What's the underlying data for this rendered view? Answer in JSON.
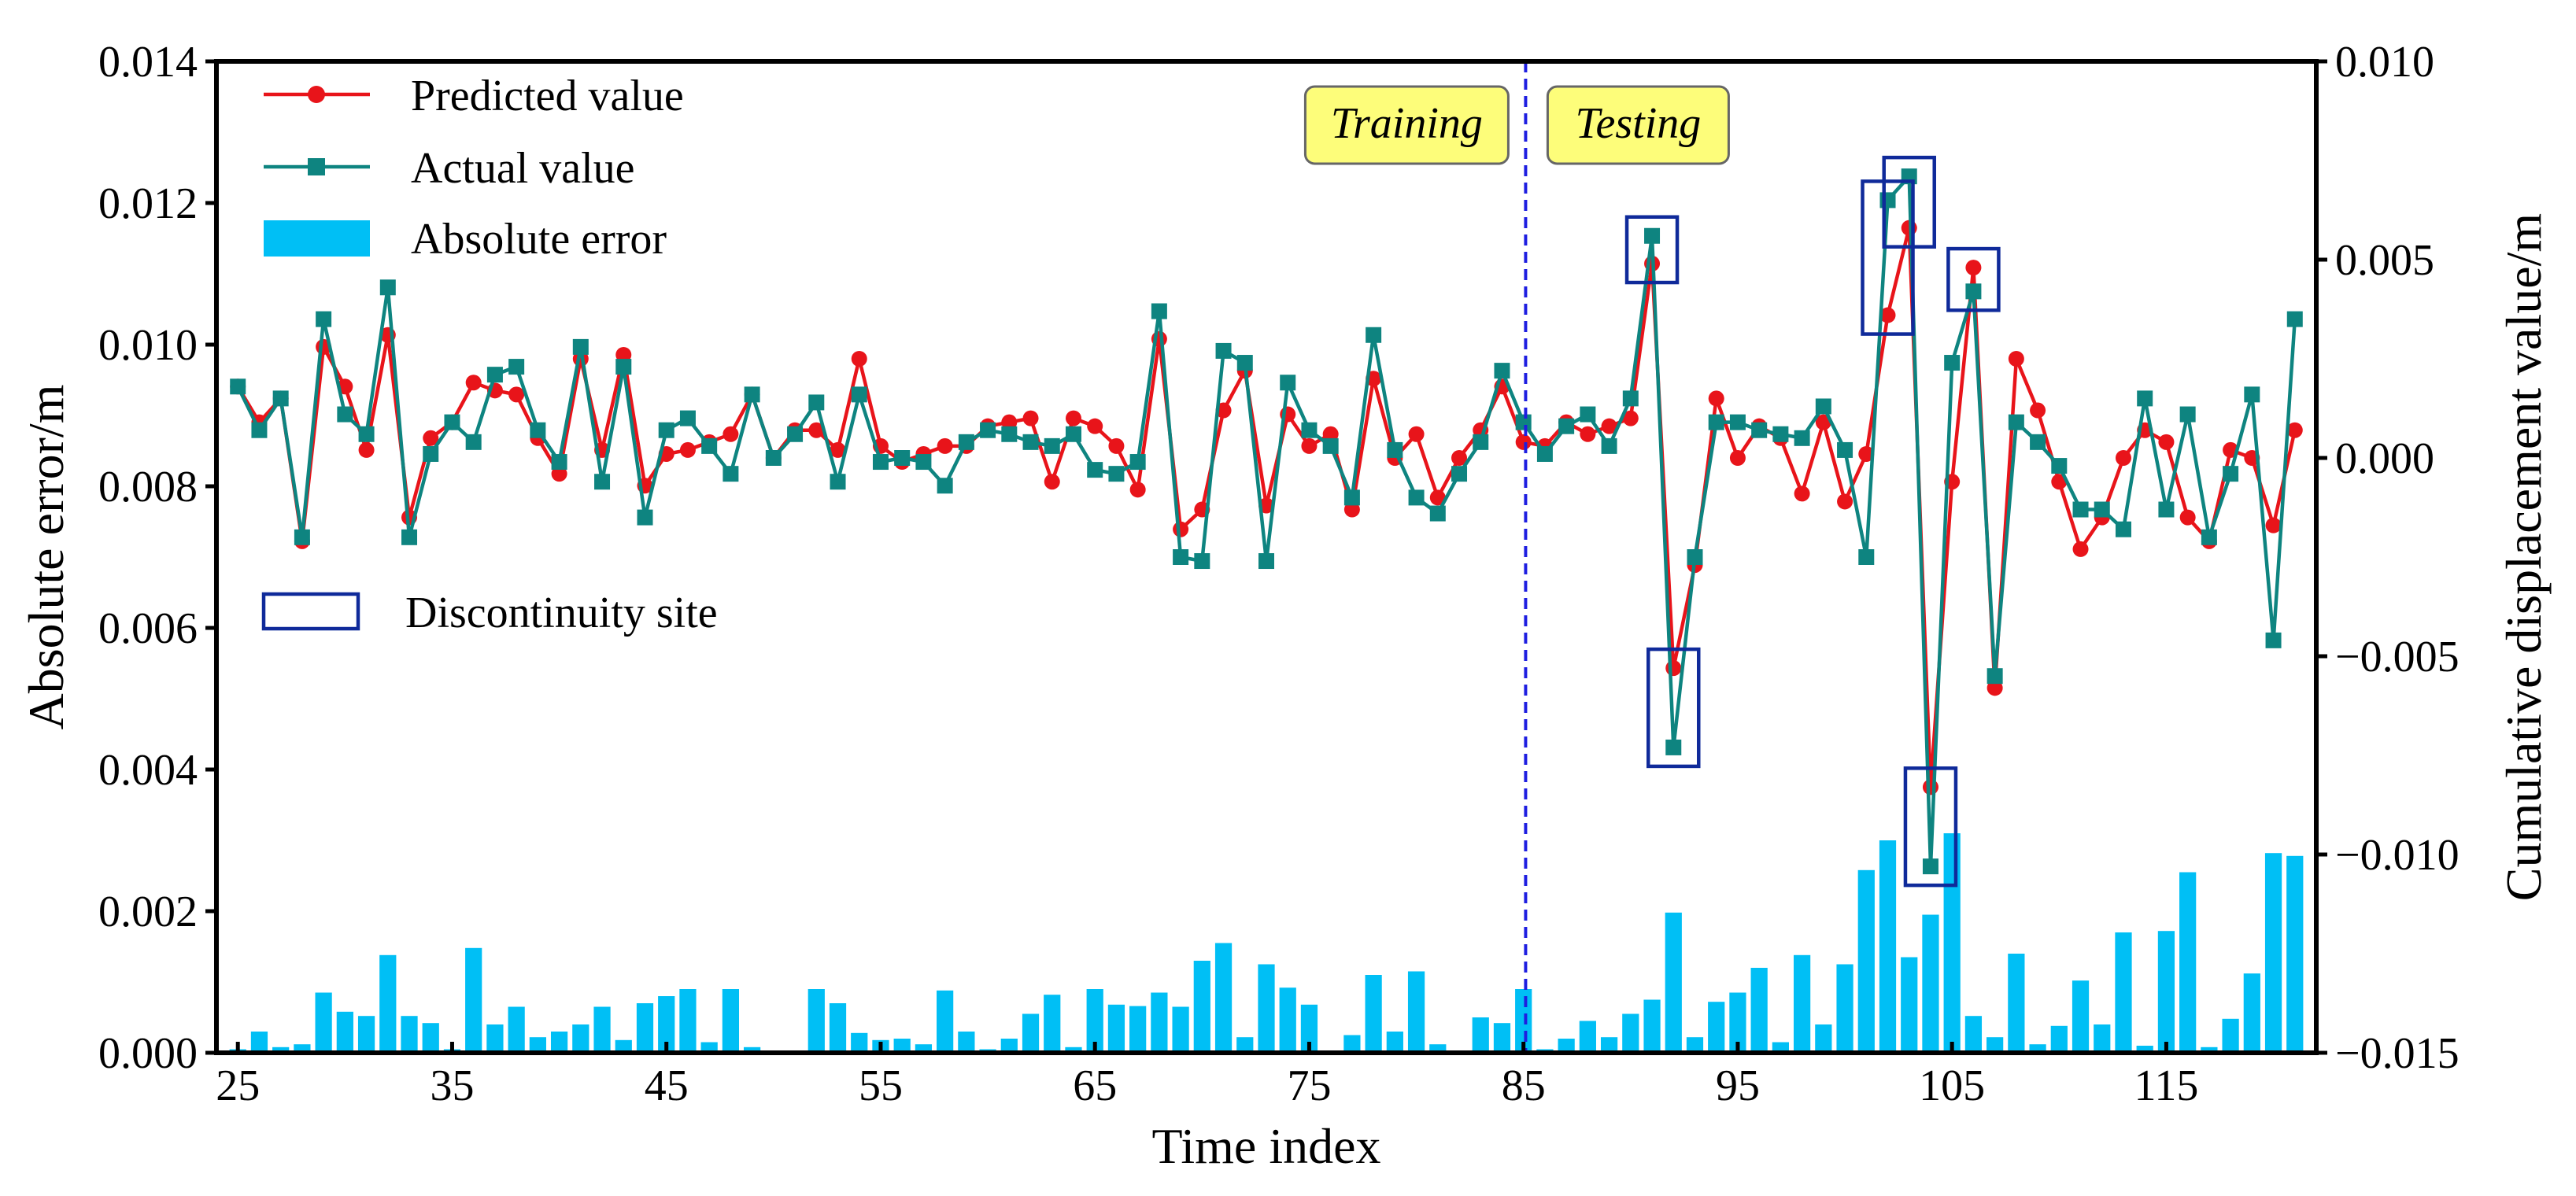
{
  "chart_data": {
    "type": "line+bar",
    "x_range": [
      25,
      121
    ],
    "xlabel": "Time index",
    "ylabel_left": "Absolute error/m",
    "ylabel_right": "Cumulative displacement value/m",
    "ylim_left": [
      0,
      0.014
    ],
    "ylim_right": [
      -0.015,
      0.01
    ],
    "x_ticks": [
      25,
      35,
      45,
      55,
      65,
      75,
      85,
      95,
      105,
      115
    ],
    "x_tick_labels": [
      "25",
      "35",
      "45",
      "55",
      "65",
      "75",
      "85",
      "95",
      "105",
      "115"
    ],
    "y_left_ticks": [
      0,
      0.002,
      0.004,
      0.006,
      0.008,
      0.01,
      0.012,
      0.014
    ],
    "y_left_tick_labels": [
      "0.000",
      "0.002",
      "0.004",
      "0.006",
      "0.008",
      "0.010",
      "0.012",
      "0.014"
    ],
    "y_right_ticks": [
      -0.015,
      -0.01,
      -0.005,
      0.0,
      0.005,
      0.01
    ],
    "y_right_tick_labels": [
      "−0.015",
      "−0.010",
      "−0.005",
      "0.000",
      "0.005",
      "0.010"
    ],
    "legend": {
      "predicted": "Predicted value",
      "actual": "Actual value",
      "error": "Absolute error",
      "discontinuity": "Discontinuity site"
    },
    "annotations": {
      "training": "Training",
      "testing": "Testing",
      "split_at": 85
    },
    "colors": {
      "predicted": "#e8141a",
      "actual": "#0e8480",
      "error": "#00bff5",
      "discontinuity": "#0f2a9a",
      "split_line": "#1e1ee0",
      "label_box": "#fdfd7a"
    },
    "x": [
      25,
      26,
      27,
      28,
      29,
      30,
      31,
      32,
      33,
      34,
      35,
      36,
      37,
      38,
      39,
      40,
      41,
      42,
      43,
      44,
      45,
      46,
      47,
      48,
      49,
      50,
      51,
      52,
      53,
      54,
      55,
      56,
      57,
      58,
      59,
      60,
      61,
      62,
      63,
      64,
      65,
      66,
      67,
      68,
      69,
      70,
      71,
      72,
      73,
      74,
      75,
      76,
      77,
      78,
      79,
      80,
      81,
      82,
      83,
      84,
      85,
      86,
      87,
      88,
      89,
      90,
      91,
      92,
      93,
      94,
      95,
      96,
      97,
      98,
      99,
      100,
      101,
      102,
      103,
      104,
      105,
      106,
      107,
      108,
      109,
      110,
      111,
      112,
      113,
      114,
      115,
      116,
      117,
      118,
      119,
      120,
      121
    ],
    "series": [
      {
        "name": "Predicted value",
        "axis": "right",
        "values": [
          0.0018,
          0.0009,
          0.0015,
          -0.0021,
          0.0028,
          0.0018,
          0.0002,
          0.0031,
          -0.0015,
          0.0005,
          0.0009,
          0.0019,
          0.0017,
          0.0016,
          0.0005,
          -0.0004,
          0.0025,
          0.0002,
          0.0026,
          -0.0007,
          0.0001,
          0.0002,
          0.0004,
          0.0006,
          0.0016,
          0.0,
          0.0007,
          0.0007,
          0.0002,
          0.0025,
          0.0003,
          -0.0001,
          0.0001,
          0.0003,
          0.0003,
          0.0008,
          0.0009,
          0.001,
          -0.0006,
          0.001,
          0.0008,
          0.0003,
          -0.0008,
          0.003,
          -0.0018,
          -0.0013,
          0.0012,
          0.0022,
          -0.0012,
          0.0011,
          0.0003,
          0.0006,
          -0.0013,
          0.002,
          0.0,
          0.0006,
          -0.001,
          0.0,
          0.0007,
          0.0018,
          0.0004,
          0.0003,
          0.0009,
          0.0006,
          0.0008,
          0.001,
          0.0049,
          -0.0053,
          -0.0027,
          0.0015,
          0.0,
          0.0008,
          0.0005,
          -0.0009,
          0.0009,
          -0.0011,
          0.0001,
          0.0036,
          0.0058,
          -0.0083,
          -0.0006,
          0.0048,
          -0.0058,
          0.0025,
          0.0012,
          -0.0006,
          -0.0023,
          -0.0015,
          0.0,
          0.0007,
          0.0004,
          -0.0015,
          -0.0021,
          0.0002,
          0.0,
          -0.0017,
          0.0007
        ]
      },
      {
        "name": "Actual value",
        "axis": "right",
        "values": [
          0.0018,
          0.0007,
          0.0015,
          -0.002,
          0.0035,
          0.0011,
          0.0006,
          0.0043,
          -0.002,
          0.0001,
          0.0009,
          0.0004,
          0.0021,
          0.0023,
          0.0007,
          -0.0001,
          0.0028,
          -0.0006,
          0.0023,
          -0.0015,
          0.0007,
          0.001,
          0.0003,
          -0.0004,
          0.0016,
          0.0,
          0.0006,
          0.0014,
          -0.0006,
          0.0016,
          -0.0001,
          0.0,
          -0.0001,
          -0.0007,
          0.0004,
          0.0007,
          0.0006,
          0.0004,
          0.0003,
          0.0006,
          -0.0003,
          -0.0004,
          -0.0001,
          0.0037,
          -0.0025,
          -0.0026,
          0.0027,
          0.0024,
          -0.0026,
          0.0019,
          0.0007,
          0.0003,
          -0.001,
          0.0031,
          0.0002,
          -0.001,
          -0.0014,
          -0.0004,
          0.0004,
          0.0022,
          0.0009,
          0.0001,
          0.0008,
          0.0011,
          0.0003,
          0.0015,
          0.0056,
          -0.0073,
          -0.0025,
          0.0009,
          0.0009,
          0.0007,
          0.0006,
          0.0005,
          0.0013,
          0.0002,
          -0.0025,
          0.0065,
          0.0071,
          -0.0103,
          0.0024,
          0.0042,
          -0.0055,
          0.0009,
          0.0004,
          -0.0002,
          -0.0013,
          -0.0013,
          -0.0018,
          0.0015,
          -0.0013,
          0.0011,
          -0.002,
          -0.0004,
          0.0016,
          -0.0046,
          0.0035
        ]
      },
      {
        "name": "Absolute error",
        "axis": "left",
        "type": "bar",
        "values": [
          5e-05,
          0.0003,
          8e-05,
          0.00012,
          0.00085,
          0.00058,
          0.00052,
          0.00138,
          0.00052,
          0.00042,
          5e-05,
          0.00148,
          0.0004,
          0.00065,
          0.00022,
          0.0003,
          0.0004,
          0.00065,
          0.00018,
          0.0007,
          0.0008,
          0.0009,
          0.00015,
          0.0009,
          8e-05,
          0.0,
          0.0,
          0.0009,
          0.0007,
          0.00028,
          0.00018,
          0.0002,
          0.00012,
          0.00088,
          0.0003,
          5e-05,
          0.0002,
          0.00055,
          0.00082,
          8e-05,
          0.0009,
          0.00068,
          0.00066,
          0.00085,
          0.00065,
          0.0013,
          0.00155,
          0.00022,
          0.00125,
          0.00092,
          0.00068,
          0.0,
          0.00025,
          0.0011,
          0.0003,
          0.00115,
          0.00012,
          0.0,
          0.0005,
          0.00042,
          0.0009,
          5e-05,
          0.0002,
          0.00045,
          0.00022,
          0.00055,
          0.00075,
          0.00198,
          0.00022,
          0.00072,
          0.00085,
          0.0012,
          0.00015,
          0.00138,
          0.0004,
          0.00125,
          0.00258,
          0.003,
          0.00135,
          0.00195,
          0.0031,
          0.00052,
          0.00022,
          0.0014,
          0.00012,
          0.00038,
          0.00102,
          0.0004,
          0.0017,
          0.0001,
          0.00172,
          0.00255,
          8e-05,
          0.00048,
          0.00112,
          0.00282,
          0.00278
        ]
      }
    ],
    "discontinuity_sites": [
      91,
      92,
      102,
      103,
      104,
      106
    ]
  }
}
